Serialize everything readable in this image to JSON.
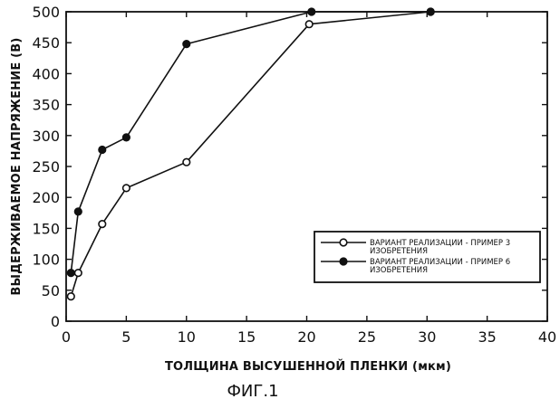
{
  "chart_data": {
    "type": "line",
    "title": "",
    "xlabel": "ТОЛЩИНА ВЫСУШЕННОЙ ПЛЕНКИ (мкм)",
    "ylabel": "ВЫДЕРЖИВАЕМОЕ НАПРЯЖЕНИЕ (В)",
    "xlim": [
      0,
      40
    ],
    "ylim": [
      0,
      500
    ],
    "xticks": [
      0,
      5,
      10,
      15,
      20,
      25,
      30,
      35,
      40
    ],
    "yticks": [
      0,
      50,
      100,
      150,
      200,
      250,
      300,
      350,
      400,
      450,
      500
    ],
    "grid": false,
    "legend_position": "lower-right",
    "series": [
      {
        "name_line1": "ВАРИАНТ РЕАЛИЗАЦИИ - ПРИМЕР 3",
        "name_line2": "ИЗОБРЕТЕНИЯ",
        "marker": "open-circle",
        "x": [
          0.4,
          1.0,
          3.0,
          5.0,
          10.0,
          20.2,
          30.3
        ],
        "y": [
          40,
          78,
          157,
          215,
          257,
          480,
          500
        ]
      },
      {
        "name_line1": "ВАРИАНТ РЕАЛИЗАЦИИ - ПРИМЕР 6",
        "name_line2": "ИЗОБРЕТЕНИЯ",
        "marker": "filled-circle",
        "x": [
          0.4,
          1.0,
          3.0,
          5.0,
          10.0,
          20.4,
          30.3
        ],
        "y": [
          78,
          177,
          277,
          297,
          448,
          500,
          500
        ]
      }
    ]
  },
  "caption": "ФИГ.1"
}
